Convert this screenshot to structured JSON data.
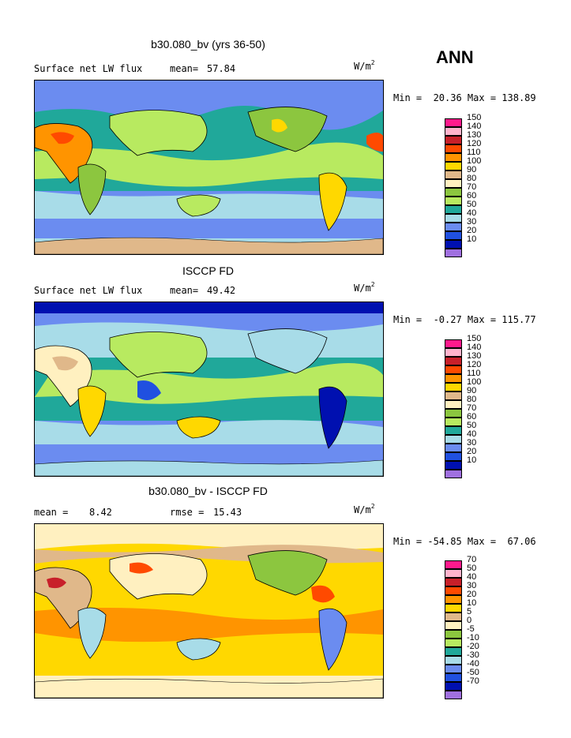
{
  "season": "ANN",
  "panels": [
    {
      "title": "b30.080_bv (yrs 36-50)",
      "left_label": "Surface net LW flux",
      "stat_label": "mean=",
      "stat_value": "57.84",
      "units": "W/m",
      "units_sup": "2",
      "minmax": "Min =  20.36 Max = 138.89",
      "levels": [
        "150",
        "140",
        "130",
        "120",
        "110",
        "100",
        "90",
        "80",
        "70",
        "60",
        "50",
        "40",
        "30",
        "20",
        "10"
      ],
      "colors": [
        "#ff1a8c",
        "#ffb3cc",
        "#c8202a",
        "#ff4a00",
        "#ff9400",
        "#ffd800",
        "#e0b88a",
        "#fff0c0",
        "#8cc63f",
        "#b8ea60",
        "#20a89a",
        "#a8dce8",
        "#6b8cf0",
        "#2050e0",
        "#0010b0",
        "#a070e0"
      ]
    },
    {
      "title": "ISCCP FD",
      "left_label": "Surface net LW flux",
      "stat_label": "mean=",
      "stat_value": "49.42",
      "units": "W/m",
      "units_sup": "2",
      "minmax": "Min =  -0.27 Max = 115.77",
      "levels": [
        "150",
        "140",
        "130",
        "120",
        "110",
        "100",
        "90",
        "80",
        "70",
        "60",
        "50",
        "40",
        "30",
        "20",
        "10"
      ],
      "colors": [
        "#ff1a8c",
        "#ffb3cc",
        "#c8202a",
        "#ff4a00",
        "#ff9400",
        "#ffd800",
        "#e0b88a",
        "#fff0c0",
        "#8cc63f",
        "#b8ea60",
        "#20a89a",
        "#a8dce8",
        "#6b8cf0",
        "#2050e0",
        "#0010b0",
        "#a070e0"
      ]
    },
    {
      "title": "b30.080_bv - ISCCP FD",
      "left_label": "mean =",
      "left_value": "8.42",
      "stat_label": "rmse =",
      "stat_value": "15.43",
      "units": "W/m",
      "units_sup": "2",
      "minmax": "Min = -54.85 Max =  67.06",
      "levels": [
        "70",
        "50",
        "40",
        "30",
        "20",
        "10",
        "5",
        "0",
        "-5",
        "-10",
        "-20",
        "-30",
        "-40",
        "-50",
        "-70"
      ],
      "colors": [
        "#ff1a8c",
        "#ffb3cc",
        "#c8202a",
        "#ff4a00",
        "#ff9400",
        "#ffd800",
        "#e0b88a",
        "#fff0c0",
        "#8cc63f",
        "#b8ea60",
        "#20a89a",
        "#a8dce8",
        "#6b8cf0",
        "#2050e0",
        "#0010b0",
        "#a070e0"
      ]
    }
  ]
}
